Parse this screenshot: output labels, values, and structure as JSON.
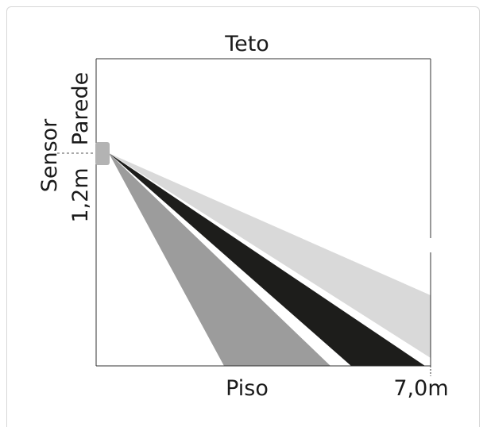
{
  "labels": {
    "ceiling": "Teto",
    "wall": "Parede",
    "sensor": "Sensor",
    "mount_height": "1,2m",
    "floor": "Piso",
    "range": "7,0m"
  },
  "colors": {
    "frame": "#333333",
    "beam_light": "#d9d9d9",
    "beam_dark": "#1d1d1b",
    "beam_medium": "#9c9c9c",
    "sensor_body": "#b3b3b3",
    "card_border": "#d7d7d7"
  }
}
